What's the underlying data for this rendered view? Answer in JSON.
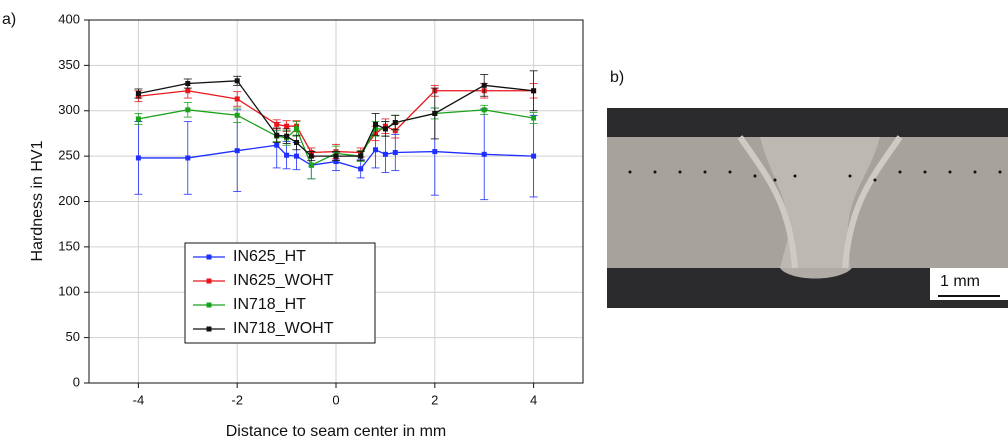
{
  "chart_data": {
    "type": "line",
    "x_label": "Distance to seam center in mm",
    "y_label": "Hardness in HV1",
    "x": [
      -4,
      -3,
      -2,
      -1.2,
      -1,
      -0.8,
      -0.5,
      0,
      0.5,
      0.8,
      1,
      1.2,
      2,
      3,
      4
    ],
    "xlim": [
      -5,
      5
    ],
    "xticks": [
      -4,
      -2,
      0,
      2,
      4
    ],
    "ylim": [
      0,
      400
    ],
    "yticks": [
      0,
      50,
      100,
      150,
      200,
      250,
      300,
      350,
      400
    ],
    "grid": true,
    "legend": "lower left",
    "series": [
      {
        "name": "IN625_HT",
        "color": "#1f2fff",
        "values": [
          248,
          248,
          256,
          262,
          251,
          250,
          240,
          244,
          236,
          257,
          252,
          254,
          255,
          252,
          250
        ],
        "errors": [
          40,
          40,
          45,
          25,
          15,
          15,
          15,
          10,
          10,
          20,
          20,
          20,
          48,
          50,
          45
        ]
      },
      {
        "name": "IN625_WOHT",
        "color": "#e8161b",
        "values": [
          316,
          322,
          313,
          285,
          283,
          283,
          254,
          255,
          254,
          275,
          283,
          278,
          322,
          322,
          322
        ],
        "errors": [
          6,
          8,
          8,
          5,
          6,
          6,
          5,
          8,
          5,
          8,
          8,
          8,
          6,
          8,
          8
        ]
      },
      {
        "name": "IN718_HT",
        "color": "#1aa31a",
        "values": [
          291,
          301,
          295,
          272,
          270,
          280,
          240,
          253,
          250,
          280,
          280,
          287,
          297,
          301,
          292
        ],
        "errors": [
          6,
          8,
          8,
          6,
          8,
          8,
          15,
          8,
          6,
          8,
          8,
          8,
          6,
          5,
          6
        ]
      },
      {
        "name": "IN718_WOHT",
        "color": "#111111",
        "values": [
          319,
          330,
          333,
          273,
          272,
          265,
          250,
          250,
          250,
          285,
          280,
          287,
          297,
          328,
          322
        ],
        "errors": [
          5,
          5,
          5,
          8,
          8,
          8,
          5,
          5,
          5,
          12,
          8,
          8,
          28,
          12,
          22
        ]
      }
    ]
  },
  "panel_labels": [
    "a)",
    "b)"
  ],
  "micrograph": {
    "scale_bar": "1 mm"
  }
}
